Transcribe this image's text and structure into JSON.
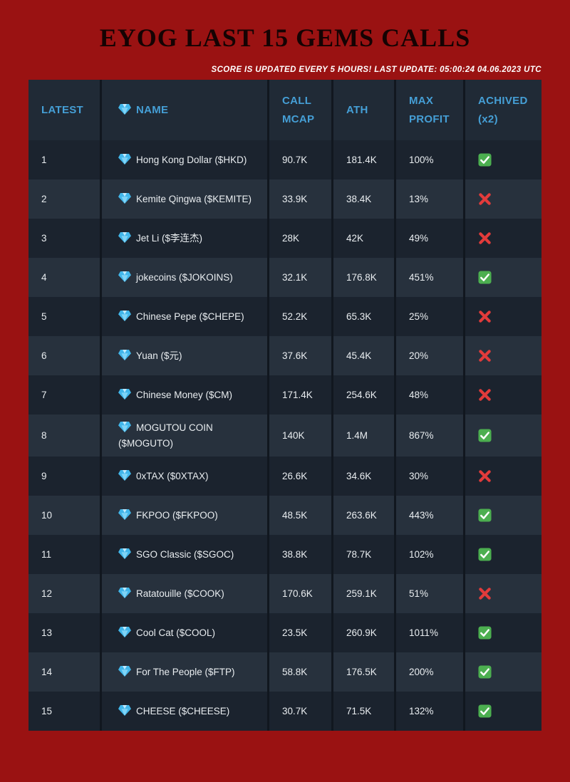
{
  "page": {
    "title": "EYOG LAST 15 GEMS CALLS",
    "subtitle": "SCORE IS UPDATED EVERY 5 HOURS! LAST UPDATE: 05:00:24 04.06.2023 UTC"
  },
  "chart_data": {
    "type": "table",
    "columns": [
      "LATEST",
      "NAME",
      "CALL MCAP",
      "ATH",
      "MAX PROFIT",
      "ACHIVED (x2)"
    ],
    "rows": [
      {
        "latest": "1",
        "name": "Hong Kong Dollar ($HKD)",
        "call_mcap": "90.7K",
        "ath": "181.4K",
        "max_profit": "100%",
        "achieved": true
      },
      {
        "latest": "2",
        "name": "Kemite Qingwa ($KEMITE)",
        "call_mcap": "33.9K",
        "ath": "38.4K",
        "max_profit": "13%",
        "achieved": false
      },
      {
        "latest": "3",
        "name": "Jet Li ($李连杰)",
        "call_mcap": "28K",
        "ath": "42K",
        "max_profit": "49%",
        "achieved": false
      },
      {
        "latest": "4",
        "name": "jokecoins ($JOKOINS)",
        "call_mcap": "32.1K",
        "ath": "176.8K",
        "max_profit": "451%",
        "achieved": true
      },
      {
        "latest": "5",
        "name": "Chinese Pepe ($CHEPE)",
        "call_mcap": "52.2K",
        "ath": "65.3K",
        "max_profit": "25%",
        "achieved": false
      },
      {
        "latest": "6",
        "name": "Yuan ($元)",
        "call_mcap": "37.6K",
        "ath": "45.4K",
        "max_profit": "20%",
        "achieved": false
      },
      {
        "latest": "7",
        "name": "Chinese Money ($CM)",
        "call_mcap": "171.4K",
        "ath": "254.6K",
        "max_profit": "48%",
        "achieved": false
      },
      {
        "latest": "8",
        "name": "MOGUTOU COIN ($MOGUTO)",
        "call_mcap": "140K",
        "ath": "1.4M",
        "max_profit": "867%",
        "achieved": true
      },
      {
        "latest": "9",
        "name": "0xTAX ($0XTAX)",
        "call_mcap": "26.6K",
        "ath": "34.6K",
        "max_profit": "30%",
        "achieved": false
      },
      {
        "latest": "10",
        "name": "FKPOO ($FKPOO)",
        "call_mcap": "48.5K",
        "ath": "263.6K",
        "max_profit": "443%",
        "achieved": true
      },
      {
        "latest": "11",
        "name": "SGO Classic ($SGOC)",
        "call_mcap": "38.8K",
        "ath": "78.7K",
        "max_profit": "102%",
        "achieved": true
      },
      {
        "latest": "12",
        "name": "Ratatouille ($COOK)",
        "call_mcap": "170.6K",
        "ath": "259.1K",
        "max_profit": "51%",
        "achieved": false
      },
      {
        "latest": "13",
        "name": "Cool Cat ($COOL)",
        "call_mcap": "23.5K",
        "ath": "260.9K",
        "max_profit": "1011%",
        "achieved": true
      },
      {
        "latest": "14",
        "name": "For The People ($FTP)",
        "call_mcap": "58.8K",
        "ath": "176.5K",
        "max_profit": "200%",
        "achieved": true
      },
      {
        "latest": "15",
        "name": "CHEESE ($CHEESE)",
        "call_mcap": "30.7K",
        "ath": "71.5K",
        "max_profit": "132%",
        "achieved": true
      }
    ]
  },
  "icons": {
    "name_prefix": "gem-icon",
    "achieved_true": "check-icon",
    "achieved_false": "cross-icon"
  },
  "colors": {
    "background": "#9a1212",
    "header_text": "#459fd6",
    "header_bg": "#202a36",
    "row_dark": "#1b232e",
    "row_light": "#27313d",
    "check_green": "#4caf50",
    "cross_red": "#e23b3b",
    "gem_blue": "#41b6ea"
  }
}
